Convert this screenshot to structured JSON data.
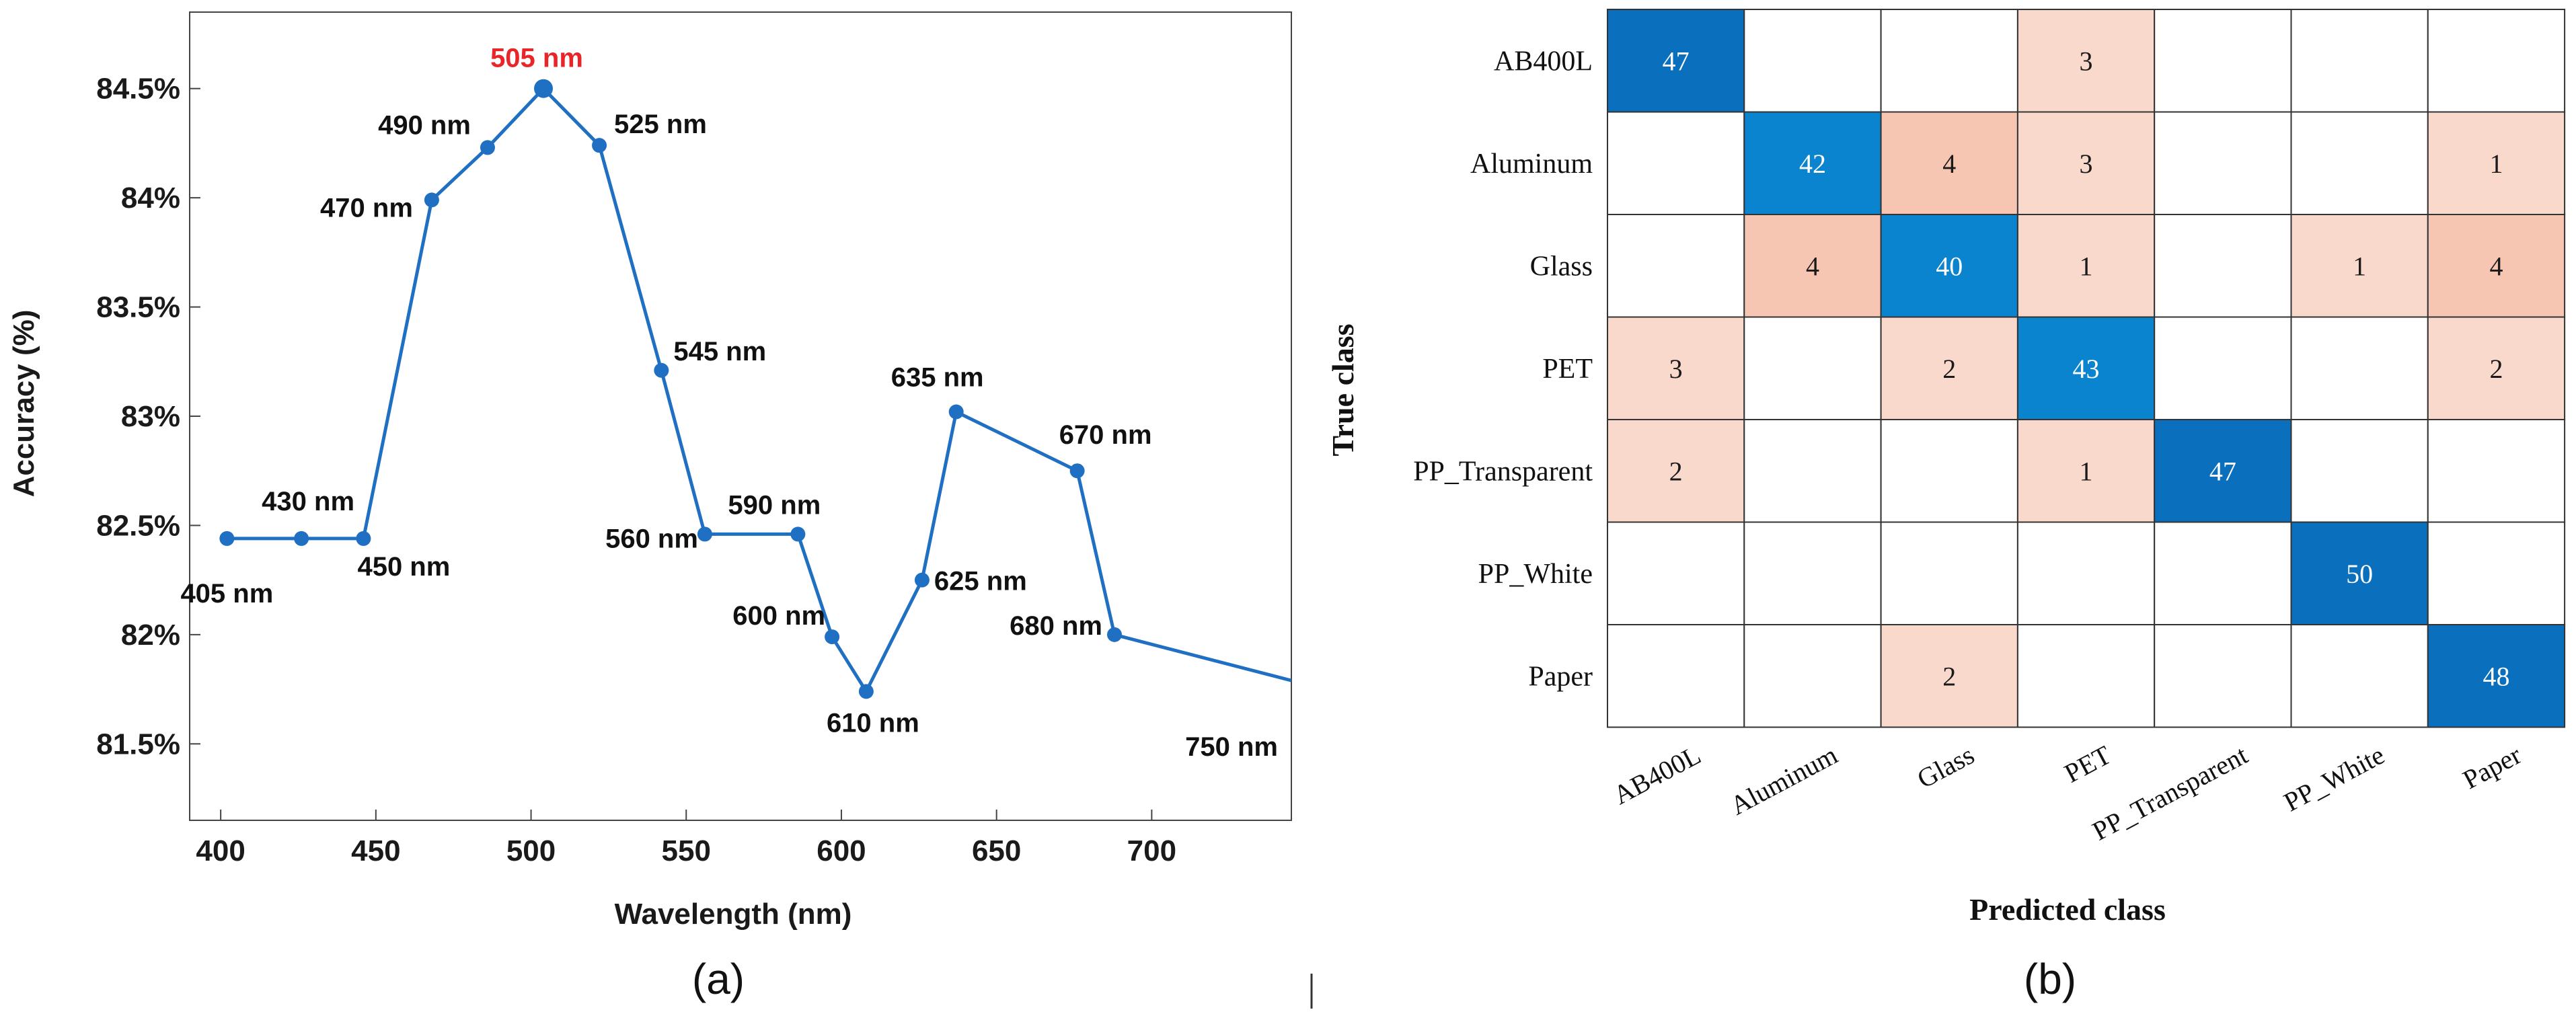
{
  "chart_data": [
    {
      "type": "line",
      "xlabel": "Wavelength (nm)",
      "ylabel": "Accuracy (%)",
      "xlim": [
        390,
        745
      ],
      "ylim": [
        81.15,
        84.85
      ],
      "xticks": [
        400,
        450,
        500,
        550,
        600,
        650,
        700
      ],
      "xtick_labels": [
        "400",
        "450",
        "500",
        "550",
        "600",
        "650",
        "700"
      ],
      "yticks": [
        81.5,
        82,
        82.5,
        83,
        83.5,
        84,
        84.5
      ],
      "ytick_labels": [
        "81.5%",
        "82%",
        "82.5%",
        "83%",
        "83.5%",
        "84%",
        "84.5%"
      ],
      "series": [
        {
          "name": "Accuracy",
          "color": "#1f6fc2",
          "x": [
            402,
            426,
            446,
            468,
            486,
            504,
            522,
            542,
            556,
            586,
            597,
            608,
            626,
            637,
            676,
            688,
            745
          ],
          "y": [
            82.44,
            82.44,
            82.44,
            83.99,
            84.23,
            84.5,
            84.24,
            83.21,
            82.46,
            82.46,
            81.99,
            81.74,
            82.25,
            83.02,
            82.75,
            82.0,
            81.79
          ],
          "point_labels": [
            "405 nm",
            "430 nm",
            "450 nm",
            "470 nm",
            "490 nm",
            "505 nm",
            "525 nm",
            "545 nm",
            "560 nm",
            "590 nm",
            "600 nm",
            "610 nm",
            "625 nm",
            "635 nm",
            "670 nm",
            "680 nm",
            "750 nm"
          ],
          "highlight_label": "505 nm",
          "highlight_color": "#e8262a"
        }
      ],
      "panel_label": "(a)"
    },
    {
      "type": "heatmap",
      "xlabel": "Predicted class",
      "ylabel": "True class",
      "rows": [
        "AB400L",
        "Aluminum",
        "Glass",
        "PET",
        "PP_Transparent",
        "PP_White",
        "Paper"
      ],
      "cols": [
        "AB400L",
        "Aluminum",
        "Glass",
        "PET",
        "PP_Transparent",
        "PP_White",
        "Paper"
      ],
      "values": [
        [
          47,
          0,
          0,
          3,
          0,
          0,
          0
        ],
        [
          0,
          42,
          4,
          3,
          0,
          0,
          1
        ],
        [
          0,
          4,
          40,
          1,
          0,
          1,
          4
        ],
        [
          3,
          0,
          2,
          43,
          0,
          0,
          2
        ],
        [
          2,
          0,
          0,
          1,
          47,
          0,
          0
        ],
        [
          0,
          0,
          0,
          0,
          0,
          50,
          0
        ],
        [
          0,
          0,
          2,
          0,
          0,
          0,
          48
        ]
      ],
      "diag_color": "#0a6fbd",
      "diag_color_light": "#0b84cf",
      "off_color_light": "#fad9cd",
      "off_color_dark": "#f7c6b3",
      "panel_label": "(b)"
    }
  ]
}
